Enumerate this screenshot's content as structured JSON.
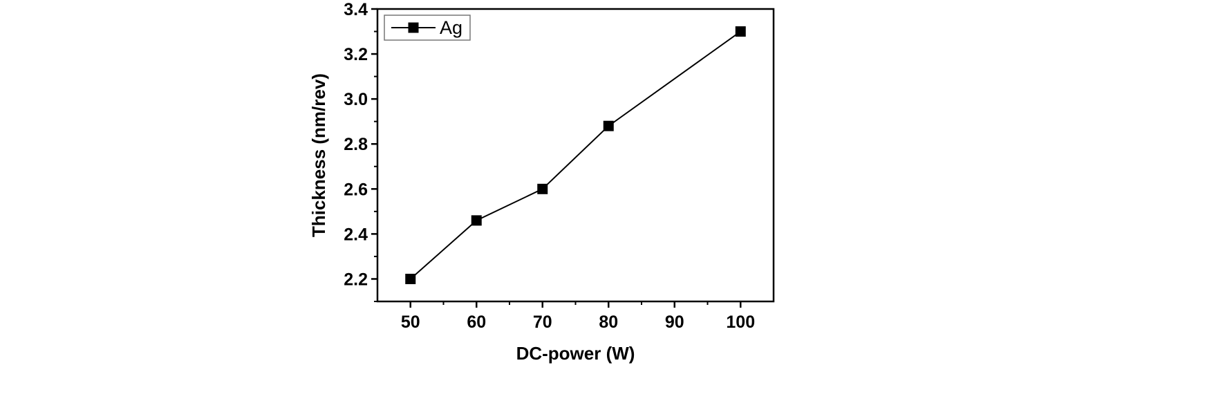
{
  "chart_data": {
    "type": "line",
    "title": "",
    "xlabel": "DC-power (W)",
    "ylabel": "Thickness (nm/rev)",
    "xlim": [
      45,
      105
    ],
    "ylim": [
      2.1,
      3.4
    ],
    "x_ticks": [
      50,
      60,
      70,
      80,
      90,
      100
    ],
    "x_minor_ticks": [
      55,
      65,
      75,
      85,
      95
    ],
    "x_tick_labels": [
      "50",
      "60",
      "70",
      "80",
      "90",
      "100"
    ],
    "y_ticks": [
      2.2,
      2.4,
      2.6,
      2.8,
      3.0,
      3.2,
      3.4
    ],
    "y_minor_ticks": [
      2.1,
      2.3,
      2.5,
      2.7,
      2.9,
      3.1,
      3.3
    ],
    "y_tick_labels": [
      "2.2",
      "2.4",
      "2.6",
      "2.8",
      "3.0",
      "3.2",
      "3.4"
    ],
    "grid": false,
    "legend_position": "top-left",
    "series": [
      {
        "name": "Ag",
        "marker": "square",
        "color": "#000000",
        "x": [
          50,
          60,
          70,
          80,
          100
        ],
        "y": [
          2.2,
          2.46,
          2.6,
          2.88,
          3.3
        ]
      }
    ]
  }
}
